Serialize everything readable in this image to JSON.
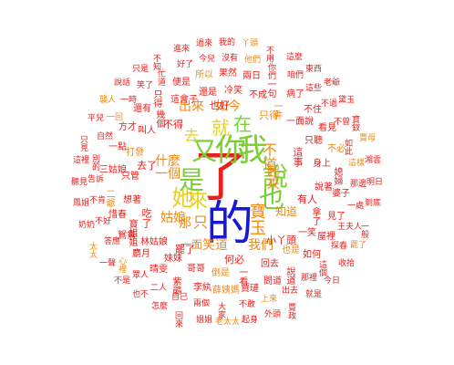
{
  "colors": {
    "red": "#e8201c",
    "orange": "#f08a18",
    "yellow": "#e8d020",
    "green": "#78d030",
    "blue": "#1818d8",
    "background": "#ffffff"
  },
  "main_words": [
    {
      "text": "了",
      "color": "red"
    },
    {
      "text": "的",
      "color": "blue"
    },
    {
      "text": "你",
      "color": "green"
    },
    {
      "text": "我",
      "color": "green"
    },
    {
      "text": "又",
      "color": "green"
    },
    {
      "text": "是",
      "color": "green"
    },
    {
      "text": "說",
      "color": "green"
    },
    {
      "text": "也",
      "color": "green"
    },
    {
      "text": "她",
      "color": "yellow"
    },
    {
      "text": "來",
      "color": "yellow"
    },
    {
      "text": "寶玉",
      "color": "orange"
    },
    {
      "text": "就",
      "color": "yellow"
    },
    {
      "text": "在",
      "color": "green"
    },
    {
      "text": "去",
      "color": "yellow"
    },
    {
      "text": "不道",
      "color": "orange"
    },
    {
      "text": "只",
      "color": "orange"
    },
    {
      "text": "一個",
      "color": "orange"
    },
    {
      "text": "那",
      "color": "orange"
    },
    {
      "text": "起來",
      "color": "orange"
    },
    {
      "text": "我們",
      "color": "orange"
    },
    {
      "text": "出來",
      "color": "orange"
    },
    {
      "text": "如今",
      "color": "orange"
    },
    {
      "text": "笑道",
      "color": "orange"
    },
    {
      "text": "什麼",
      "color": "orange"
    },
    {
      "text": "姑娘",
      "color": "orange"
    },
    {
      "text": "知道",
      "color": "orange"
    },
    {
      "text": "一面",
      "color": "orange"
    }
  ],
  "small_words": [
    "明日",
    "到底",
    "一般",
    "罷了",
    "收拾",
    "今日",
    "就是",
    "賈政",
    "外頭",
    "起身",
    "老太太",
    "姐姐",
    "回來",
    "怎麼",
    "也不",
    "不是",
    "一聲",
    "太太",
    "奶奶",
    "鳳姐",
    "聽見",
    "這裡",
    "只見",
    "平兒",
    "襲人",
    "說話",
    "只是",
    "不知",
    "進來",
    "過來",
    "我的",
    "丫頭",
    "不用",
    "這麼",
    "東西",
    "老爺",
    "黛玉",
    "寶釵",
    "賈母",
    "湘雲",
    "王夫人",
    "探春",
    "這個",
    "那裡",
    "出去",
    "上來",
    "不敢",
    "大家",
    "兩個",
    "自己",
    "二人",
    "眾人",
    "心裡",
    "答應",
    "不好",
    "不肯",
    "告訴",
    "別的",
    "自然",
    "一回",
    "一時",
    "笑了",
    "忙道",
    "好了",
    "今兒",
    "沒有",
    "他們",
    "你們",
    "咱們",
    "這些",
    "不過",
    "不曾",
    "如此",
    "這樣",
    "那邊",
    "一處",
    "如何",
    "說道",
    "問道",
    "賈璉",
    "薛姨媽",
    "李紈",
    "紫鵑",
    "晴雯",
    "麝月",
    "鴛鴦",
    "惜春",
    "二爺",
    "三姑娘",
    "一點",
    "方才",
    "還有",
    "只得",
    "便是",
    "所以",
    "果然",
    "兩日",
    "一句",
    "病了",
    "不住",
    "看見",
    "不必",
    "媳婦",
    "婆子",
    "見了",
    "屋裡",
    "回去",
    "一看",
    "倒是",
    "哥哥",
    "妹妹",
    "林姑娘",
    "寶姐姐",
    "想著",
    "只管",
    "打發",
    "叫人",
    "幾個",
    "這會子",
    "還是",
    "冷笑",
    "不成",
    "一件",
    "一面說",
    "只聽",
    "身上",
    "說著",
    "拿了",
    "一笑",
    "也是",
    "何必",
    "罷了",
    "吃了",
    "去了",
    "不得",
    "也好",
    "只得",
    "這事",
    "有人",
    "小丫頭"
  ]
}
